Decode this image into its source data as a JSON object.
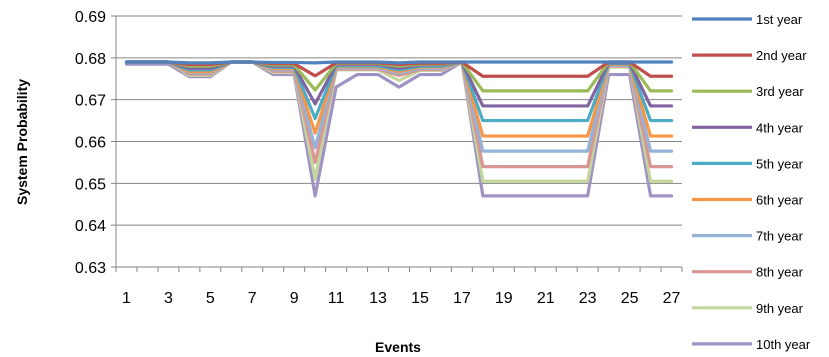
{
  "chart_data": {
    "type": "line",
    "title": "",
    "xlabel": "Events",
    "ylabel": "System Probability",
    "ylim": [
      0.63,
      0.69
    ],
    "yticks": [
      "0.63",
      "0.64",
      "0.65",
      "0.66",
      "0.67",
      "0.68",
      "0.69"
    ],
    "xlim": [
      1,
      27
    ],
    "xtick_labels": [
      "1",
      "3",
      "5",
      "7",
      "9",
      "11",
      "13",
      "15",
      "17",
      "19",
      "21",
      "23",
      "25",
      "27"
    ],
    "grid": "horizontal",
    "legend_position": "right",
    "x": [
      1,
      2,
      3,
      4,
      5,
      6,
      7,
      8,
      9,
      10,
      11,
      12,
      13,
      14,
      15,
      16,
      17,
      18,
      19,
      20,
      21,
      22,
      23,
      24,
      25,
      26,
      27
    ],
    "series": [
      {
        "name": "1st year",
        "color": "#4f81bd",
        "values": [
          0.679,
          0.679,
          0.679,
          0.6788,
          0.6788,
          0.679,
          0.679,
          0.6789,
          0.6789,
          0.6788,
          0.679,
          0.679,
          0.679,
          0.6788,
          0.679,
          0.679,
          0.679,
          0.679,
          0.679,
          0.679,
          0.679,
          0.679,
          0.679,
          0.679,
          0.679,
          0.679,
          0.679
        ]
      },
      {
        "name": "2nd year",
        "color": "#c0504d",
        "values": [
          0.679,
          0.679,
          0.679,
          0.6784,
          0.6784,
          0.679,
          0.679,
          0.6786,
          0.6786,
          0.6757,
          0.6788,
          0.6788,
          0.6788,
          0.6784,
          0.6787,
          0.6787,
          0.679,
          0.6756,
          0.6756,
          0.6756,
          0.6756,
          0.6756,
          0.6756,
          0.679,
          0.679,
          0.6756,
          0.6756
        ]
      },
      {
        "name": "3rd year",
        "color": "#9bbb59",
        "values": [
          0.679,
          0.679,
          0.679,
          0.678,
          0.678,
          0.679,
          0.679,
          0.6783,
          0.6783,
          0.6723,
          0.6786,
          0.6786,
          0.6786,
          0.678,
          0.6785,
          0.6785,
          0.679,
          0.6721,
          0.6721,
          0.6721,
          0.6721,
          0.6721,
          0.6721,
          0.679,
          0.679,
          0.6721,
          0.6721
        ]
      },
      {
        "name": "4th year",
        "color": "#8064a2",
        "values": [
          0.679,
          0.679,
          0.679,
          0.6775,
          0.6775,
          0.679,
          0.679,
          0.678,
          0.678,
          0.669,
          0.6784,
          0.6784,
          0.6784,
          0.6775,
          0.6783,
          0.6783,
          0.679,
          0.6685,
          0.6685,
          0.6685,
          0.6685,
          0.6685,
          0.6685,
          0.6788,
          0.6788,
          0.6685,
          0.6685
        ]
      },
      {
        "name": "5th year",
        "color": "#4bacc6",
        "values": [
          0.679,
          0.679,
          0.679,
          0.6771,
          0.6771,
          0.679,
          0.679,
          0.6777,
          0.6777,
          0.6655,
          0.6781,
          0.6781,
          0.6781,
          0.6771,
          0.678,
          0.678,
          0.679,
          0.665,
          0.665,
          0.665,
          0.665,
          0.665,
          0.665,
          0.6786,
          0.6786,
          0.665,
          0.665
        ]
      },
      {
        "name": "6th year",
        "color": "#f79646",
        "values": [
          0.679,
          0.679,
          0.679,
          0.6767,
          0.6767,
          0.679,
          0.679,
          0.6774,
          0.6774,
          0.662,
          0.6779,
          0.6779,
          0.6779,
          0.6767,
          0.6778,
          0.6778,
          0.679,
          0.6613,
          0.6613,
          0.6613,
          0.6613,
          0.6613,
          0.6613,
          0.6784,
          0.6784,
          0.6613,
          0.6613
        ]
      },
      {
        "name": "7th year",
        "color": "#95b3d7",
        "values": [
          0.679,
          0.679,
          0.679,
          0.6764,
          0.6764,
          0.679,
          0.679,
          0.6771,
          0.6771,
          0.6585,
          0.6776,
          0.6776,
          0.6776,
          0.6763,
          0.6775,
          0.6775,
          0.679,
          0.6577,
          0.6577,
          0.6577,
          0.6577,
          0.6577,
          0.6577,
          0.6782,
          0.6782,
          0.6577,
          0.6577
        ]
      },
      {
        "name": "8th year",
        "color": "#d99694",
        "values": [
          0.679,
          0.679,
          0.679,
          0.6761,
          0.6761,
          0.679,
          0.679,
          0.6768,
          0.6768,
          0.655,
          0.6773,
          0.6773,
          0.6773,
          0.6758,
          0.6772,
          0.6772,
          0.679,
          0.654,
          0.654,
          0.654,
          0.654,
          0.654,
          0.654,
          0.678,
          0.678,
          0.654,
          0.654
        ]
      },
      {
        "name": "9th year",
        "color": "#c3d69b",
        "values": [
          0.679,
          0.679,
          0.679,
          0.6758,
          0.6758,
          0.679,
          0.679,
          0.6765,
          0.6765,
          0.651,
          0.6771,
          0.6771,
          0.6771,
          0.6746,
          0.677,
          0.677,
          0.679,
          0.6505,
          0.6505,
          0.6505,
          0.6505,
          0.6505,
          0.6505,
          0.6778,
          0.6778,
          0.6505,
          0.6505
        ]
      },
      {
        "name": "10th year",
        "color": "#a092c5",
        "values": [
          0.6785,
          0.6785,
          0.6785,
          0.6755,
          0.6755,
          0.679,
          0.679,
          0.676,
          0.676,
          0.647,
          0.673,
          0.676,
          0.676,
          0.673,
          0.676,
          0.676,
          0.679,
          0.647,
          0.647,
          0.647,
          0.647,
          0.647,
          0.647,
          0.676,
          0.676,
          0.647,
          0.647
        ]
      }
    ]
  }
}
